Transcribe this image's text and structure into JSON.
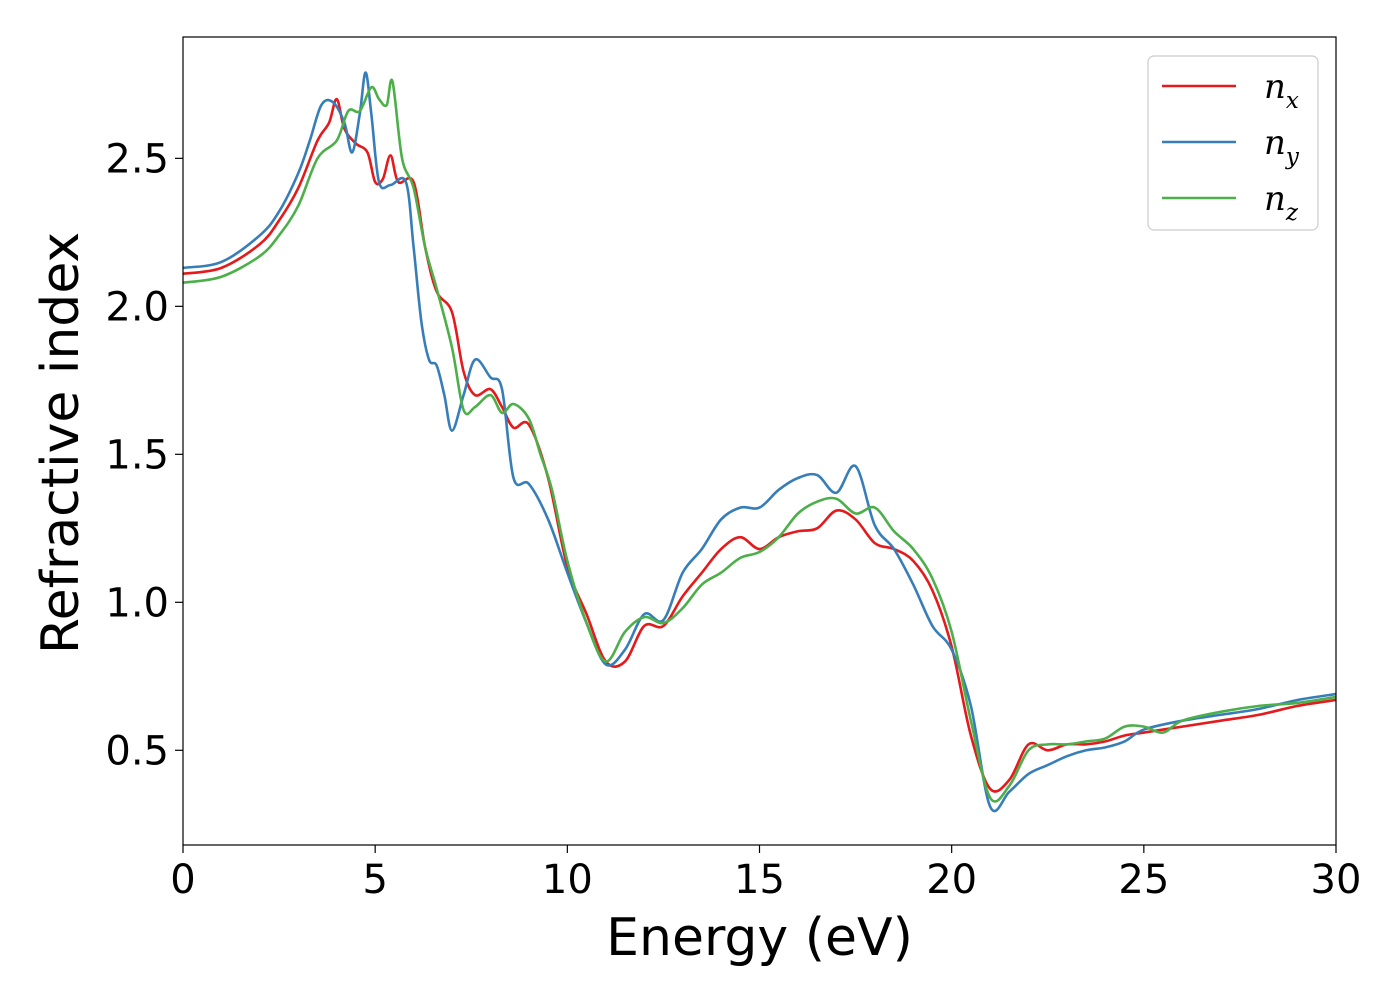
{
  "chart_data": {
    "type": "line",
    "xlabel": "Energy (eV)",
    "ylabel": "Refractive index",
    "xlim": [
      0,
      30
    ],
    "ylim": [
      0.18,
      2.91
    ],
    "xticks": [
      0,
      5,
      10,
      15,
      20,
      25,
      30
    ],
    "xtick_labels": [
      "0",
      "5",
      "10",
      "15",
      "20",
      "25",
      "30"
    ],
    "yticks": [
      0.5,
      1.0,
      1.5,
      2.0,
      2.5
    ],
    "ytick_labels": [
      "0.5",
      "1.0",
      "1.5",
      "2.0",
      "2.5"
    ],
    "grid": false,
    "legend_position": "top-right",
    "series": [
      {
        "name": "n_x",
        "symbol": "n",
        "subscript": "x",
        "color": "#e41a1c",
        "x": [
          0,
          1,
          2,
          2.5,
          3,
          3.5,
          3.8,
          4.0,
          4.2,
          4.5,
          4.8,
          5.0,
          5.2,
          5.4,
          5.6,
          6.0,
          6.3,
          6.6,
          7.0,
          7.3,
          7.6,
          8.0,
          8.3,
          8.6,
          9.0,
          9.5,
          10.0,
          10.5,
          11.0,
          11.5,
          12.0,
          12.5,
          13.0,
          13.5,
          14.0,
          14.5,
          15.0,
          15.5,
          16.0,
          16.5,
          17.0,
          17.5,
          18.0,
          18.5,
          19.0,
          19.5,
          20.0,
          20.5,
          21.0,
          21.5,
          22.0,
          22.5,
          23.0,
          23.5,
          24.0,
          24.5,
          25.0,
          26.0,
          27.0,
          28.0,
          29.0,
          30.0
        ],
        "y": [
          2.11,
          2.13,
          2.21,
          2.29,
          2.4,
          2.56,
          2.62,
          2.7,
          2.6,
          2.55,
          2.52,
          2.42,
          2.43,
          2.51,
          2.42,
          2.42,
          2.2,
          2.05,
          1.98,
          1.78,
          1.7,
          1.72,
          1.66,
          1.59,
          1.6,
          1.42,
          1.12,
          0.96,
          0.8,
          0.8,
          0.92,
          0.92,
          1.02,
          1.1,
          1.18,
          1.22,
          1.18,
          1.22,
          1.24,
          1.25,
          1.31,
          1.28,
          1.2,
          1.18,
          1.14,
          1.04,
          0.85,
          0.55,
          0.37,
          0.4,
          0.52,
          0.5,
          0.52,
          0.52,
          0.53,
          0.55,
          0.56,
          0.58,
          0.6,
          0.62,
          0.65,
          0.67
        ]
      },
      {
        "name": "n_y",
        "symbol": "n",
        "subscript": "y",
        "color": "#377eb8",
        "x": [
          0,
          1,
          2,
          2.5,
          3,
          3.3,
          3.6,
          3.9,
          4.2,
          4.4,
          4.6,
          4.75,
          4.9,
          5.1,
          5.4,
          5.8,
          6.0,
          6.2,
          6.4,
          6.6,
          6.8,
          7.0,
          7.3,
          7.6,
          8.0,
          8.3,
          8.6,
          9.0,
          9.5,
          10.0,
          10.5,
          11.0,
          11.5,
          12.0,
          12.5,
          13.0,
          13.5,
          14.0,
          14.5,
          15.0,
          15.5,
          16.0,
          16.5,
          17.0,
          17.5,
          18.0,
          18.5,
          19.0,
          19.5,
          20.0,
          20.5,
          21.0,
          21.5,
          22.0,
          22.5,
          23.0,
          23.5,
          24.0,
          24.5,
          25.0,
          26.0,
          27.0,
          28.0,
          29.0,
          30.0
        ],
        "y": [
          2.13,
          2.15,
          2.24,
          2.32,
          2.45,
          2.56,
          2.68,
          2.69,
          2.62,
          2.52,
          2.65,
          2.79,
          2.65,
          2.42,
          2.41,
          2.42,
          2.2,
          1.95,
          1.82,
          1.8,
          1.7,
          1.58,
          1.7,
          1.82,
          1.76,
          1.72,
          1.42,
          1.4,
          1.28,
          1.1,
          0.93,
          0.79,
          0.84,
          0.96,
          0.94,
          1.1,
          1.18,
          1.28,
          1.32,
          1.32,
          1.38,
          1.42,
          1.43,
          1.37,
          1.46,
          1.26,
          1.18,
          1.06,
          0.92,
          0.84,
          0.65,
          0.31,
          0.36,
          0.42,
          0.45,
          0.48,
          0.5,
          0.51,
          0.53,
          0.57,
          0.6,
          0.62,
          0.64,
          0.67,
          0.69
        ]
      },
      {
        "name": "n_z",
        "symbol": "n",
        "subscript": "z",
        "color": "#4daf4a",
        "x": [
          0,
          1,
          2,
          2.5,
          3,
          3.5,
          4.0,
          4.3,
          4.6,
          4.9,
          5.1,
          5.3,
          5.45,
          5.7,
          6.0,
          6.3,
          6.6,
          7.0,
          7.3,
          7.6,
          8.0,
          8.3,
          8.6,
          9.0,
          9.3,
          9.6,
          10.0,
          10.5,
          11.0,
          11.5,
          12.0,
          12.5,
          13.0,
          13.5,
          14.0,
          14.5,
          15.0,
          15.5,
          16.0,
          16.5,
          17.0,
          17.5,
          18.0,
          18.5,
          19.0,
          19.5,
          20.0,
          20.5,
          21.0,
          21.5,
          22.0,
          22.5,
          23.0,
          23.5,
          24.0,
          24.5,
          25.0,
          25.5,
          26.0,
          27.0,
          28.0,
          29.0,
          30.0
        ],
        "y": [
          2.08,
          2.1,
          2.17,
          2.24,
          2.34,
          2.5,
          2.56,
          2.66,
          2.66,
          2.74,
          2.7,
          2.68,
          2.76,
          2.5,
          2.4,
          2.2,
          2.06,
          1.86,
          1.65,
          1.66,
          1.7,
          1.64,
          1.67,
          1.62,
          1.5,
          1.38,
          1.14,
          0.93,
          0.8,
          0.9,
          0.95,
          0.93,
          0.98,
          1.06,
          1.1,
          1.15,
          1.17,
          1.22,
          1.3,
          1.34,
          1.35,
          1.3,
          1.32,
          1.24,
          1.18,
          1.08,
          0.9,
          0.6,
          0.34,
          0.38,
          0.5,
          0.52,
          0.52,
          0.53,
          0.54,
          0.58,
          0.58,
          0.56,
          0.6,
          0.63,
          0.65,
          0.66,
          0.68
        ]
      }
    ]
  }
}
